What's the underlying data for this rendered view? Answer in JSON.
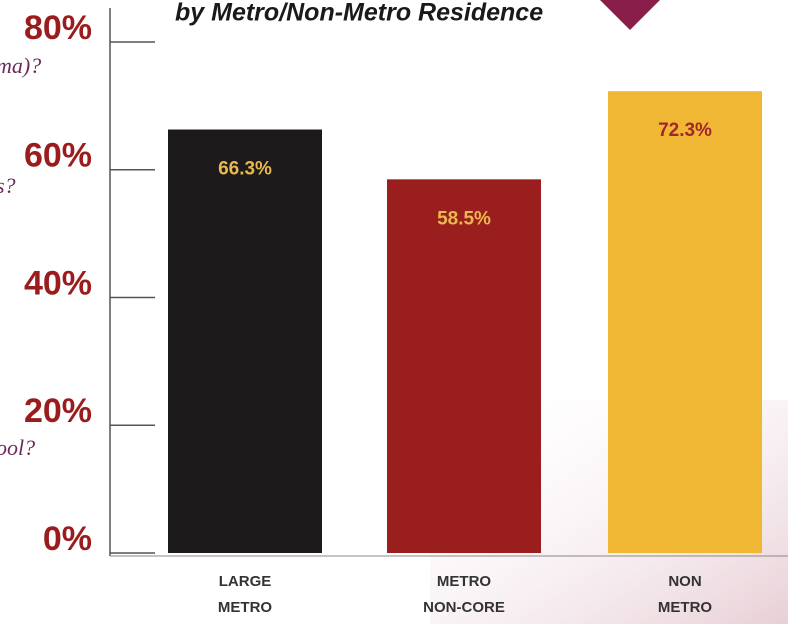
{
  "chart_data": {
    "type": "bar",
    "title": "by Metro/Non-Metro Residence",
    "annotations": [
      "ma)?",
      "s?",
      "ool?"
    ],
    "categories": [
      [
        "LARGE",
        "METRO"
      ],
      [
        "METRO",
        "NON-CORE"
      ],
      [
        "NON",
        "METRO"
      ]
    ],
    "values": [
      66.3,
      58.5,
      72.3
    ],
    "value_labels": [
      "66.3%",
      "58.5%",
      "72.3%"
    ],
    "colors": [
      "#1c1a1b",
      "#9b1e1e",
      "#f0b734"
    ],
    "value_label_colors": [
      "#e9b84e",
      "#e9b84e",
      "#a0282a"
    ],
    "ylim": [
      0,
      80
    ],
    "yticks": [
      {
        "value": 0,
        "label": "0%"
      },
      {
        "value": 20,
        "label": "20%"
      },
      {
        "value": 40,
        "label": "40%"
      },
      {
        "value": 60,
        "label": "60%"
      },
      {
        "value": 80,
        "label": "80%"
      }
    ]
  }
}
